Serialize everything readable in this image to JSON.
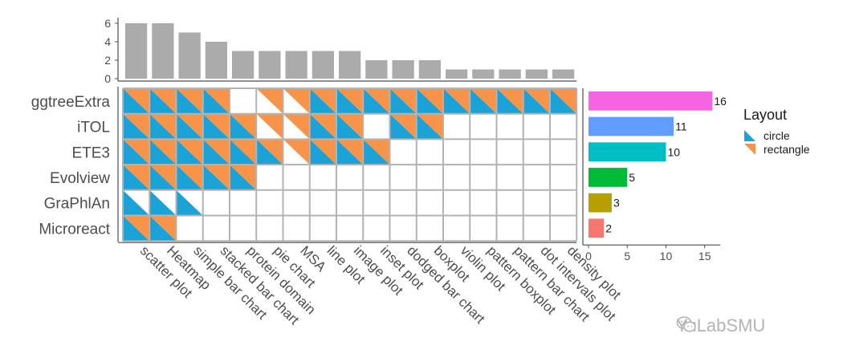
{
  "chart_data": {
    "type": "heatmap",
    "title": "",
    "rows": [
      "ggtreeExtra",
      "iTOL",
      "ETE3",
      "Evolview",
      "GraPhlAn",
      "Microreact"
    ],
    "columns": [
      "scatter plot",
      "Heatmap",
      "simple bar chart",
      "stacked bar chart",
      "protein domain",
      "pie chart",
      "MSA",
      "line plot",
      "image plot",
      "inset plot",
      "dodged bar chart",
      "boxplot",
      "violin plot",
      "pattern boxplot",
      "pattern bar chart",
      "dot intervals plot",
      "density plot"
    ],
    "cells": [
      [
        "both",
        "both",
        "both",
        "both",
        "none",
        "rectangle",
        "rectangle",
        "both",
        "both",
        "both",
        "both",
        "both",
        "both",
        "both",
        "both",
        "both",
        "both"
      ],
      [
        "both",
        "both",
        "both",
        "both",
        "both",
        "rectangle",
        "rectangle",
        "both",
        "both",
        "none",
        "both",
        "both",
        "none",
        "none",
        "none",
        "none",
        "none"
      ],
      [
        "both",
        "both",
        "both",
        "both",
        "both",
        "both",
        "rectangle",
        "both",
        "both",
        "both",
        "none",
        "none",
        "none",
        "none",
        "none",
        "none",
        "none"
      ],
      [
        "both",
        "both",
        "both",
        "both",
        "both",
        "none",
        "none",
        "none",
        "none",
        "none",
        "none",
        "none",
        "none",
        "none",
        "none",
        "none",
        "none"
      ],
      [
        "circle",
        "circle",
        "circle",
        "none",
        "none",
        "none",
        "none",
        "none",
        "none",
        "none",
        "none",
        "none",
        "none",
        "none",
        "none",
        "none",
        "none"
      ],
      [
        "both",
        "both",
        "none",
        "none",
        "none",
        "none",
        "none",
        "none",
        "none",
        "none",
        "none",
        "none",
        "none",
        "none",
        "none",
        "none",
        "none"
      ]
    ],
    "column_counts": {
      "values": [
        6,
        6,
        5,
        4,
        3,
        3,
        3,
        3,
        3,
        2,
        2,
        2,
        1,
        1,
        1,
        1,
        1
      ],
      "ylim": [
        0,
        6
      ],
      "yticks": [
        "0",
        "2",
        "4",
        "6"
      ],
      "ytick_values": [
        0,
        2,
        4,
        6
      ]
    },
    "row_counts": {
      "values": [
        16,
        11,
        10,
        5,
        3,
        2
      ],
      "labels": [
        "16",
        "11",
        "10",
        "5",
        "3",
        "2"
      ],
      "colors": [
        "#F564E3",
        "#619CFF",
        "#00BFC4",
        "#00BA38",
        "#B79F00",
        "#F8766D"
      ],
      "xlim": [
        0,
        17
      ],
      "xticks": [
        "0",
        "5",
        "10",
        "15"
      ],
      "xtick_values": [
        0,
        5,
        10,
        15
      ]
    },
    "legend": {
      "title": "Layout",
      "items": [
        {
          "label": "circle",
          "color": "#1BA3D8"
        },
        {
          "label": "rectangle",
          "color": "#F7944A"
        }
      ]
    },
    "colors": {
      "circle": "#1BA3D8",
      "rectangle": "#F7944A",
      "grid": "#B3B3B3",
      "top_bar": "#ABABAB",
      "axis": "#4D4D4D"
    }
  },
  "watermark": "YuLabSMU"
}
